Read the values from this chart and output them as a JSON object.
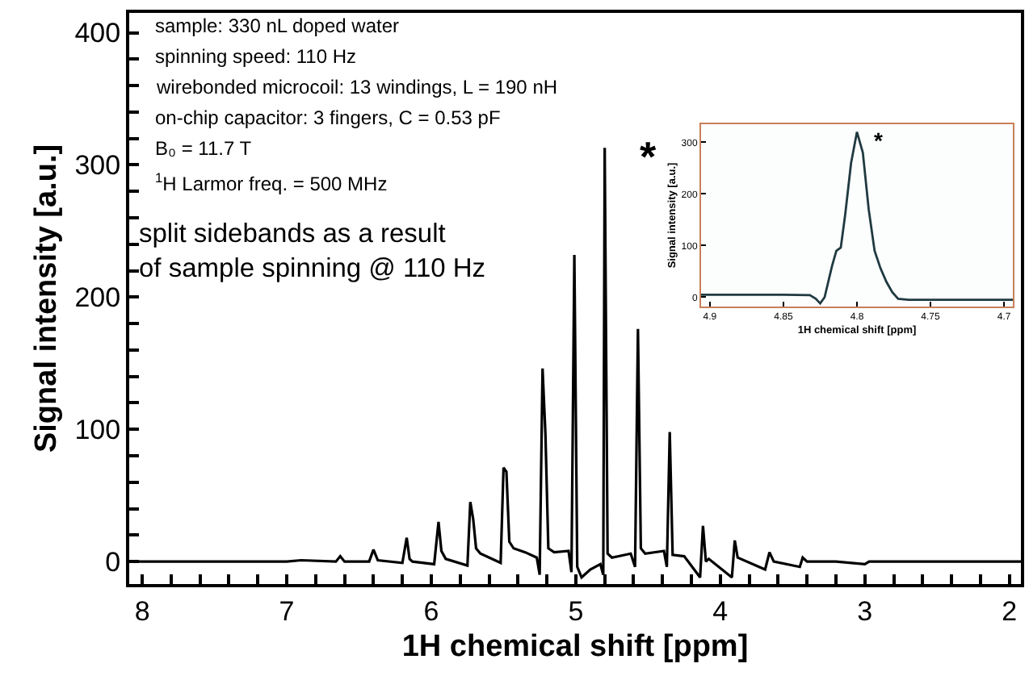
{
  "chart_data": [
    {
      "type": "line",
      "xlabel": "1H chemical shift [ppm]",
      "ylabel": "Signal intensity [a.u.]",
      "xlim": [
        8.09,
        1.92
      ],
      "ylim": [
        -17,
        415
      ],
      "xticks": [
        8,
        {
          "value": 7.8,
          "label": null
        },
        {
          "value": 7.6,
          "label": null
        },
        {
          "value": 7.4,
          "label": null
        },
        {
          "value": 7.2,
          "label": null
        },
        7,
        {
          "value": 6.8,
          "label": null
        },
        {
          "value": 6.6,
          "label": null
        },
        {
          "value": 6.4,
          "label": null
        },
        {
          "value": 6.2,
          "label": null
        },
        6,
        {
          "value": 5.8,
          "label": null
        },
        {
          "value": 5.6,
          "label": null
        },
        {
          "value": 5.4,
          "label": null
        },
        {
          "value": 5.2,
          "label": null
        },
        5,
        {
          "value": 4.8,
          "label": null
        },
        {
          "value": 4.6,
          "label": null
        },
        {
          "value": 4.4,
          "label": null
        },
        {
          "value": 4.2,
          "label": null
        },
        4,
        {
          "value": 3.8,
          "label": null
        },
        {
          "value": 3.6,
          "label": null
        },
        {
          "value": 3.4,
          "label": null
        },
        {
          "value": 3.2,
          "label": null
        },
        3,
        {
          "value": 2.8,
          "label": null
        },
        {
          "value": 2.6,
          "label": null
        },
        {
          "value": 2.4,
          "label": null
        },
        {
          "value": 2.2,
          "label": null
        },
        2
      ],
      "yticks": [
        0,
        {
          "value": 20,
          "label": null
        },
        {
          "value": 40,
          "label": null
        },
        {
          "value": 60,
          "label": null
        },
        {
          "value": 80,
          "label": null
        },
        100,
        {
          "value": 120,
          "label": null
        },
        {
          "value": 140,
          "label": null
        },
        {
          "value": 160,
          "label": null
        },
        {
          "value": 180,
          "label": null
        },
        200,
        {
          "value": 220,
          "label": null
        },
        {
          "value": 240,
          "label": null
        },
        {
          "value": 260,
          "label": null
        },
        {
          "value": 280,
          "label": null
        },
        300,
        {
          "value": 320,
          "label": null
        },
        {
          "value": 340,
          "label": null
        },
        {
          "value": 360,
          "label": null
        },
        {
          "value": 380,
          "label": null
        },
        400
      ],
      "grid": false,
      "marker": "none",
      "line_style": "solid",
      "series": [
        {
          "color": "#000000",
          "x": [
            8.09,
            7.5,
            7.0,
            6.9,
            6.66,
            6.63,
            6.6,
            6.43,
            6.4,
            6.37,
            6.2,
            6.17,
            6.15,
            6.13,
            5.98,
            5.95,
            5.93,
            5.9,
            5.75,
            5.73,
            5.71,
            5.69,
            5.66,
            5.52,
            5.5,
            5.48,
            5.46,
            5.43,
            5.35,
            5.27,
            5.25,
            5.23,
            5.21,
            5.19,
            5.15,
            5.05,
            5.03,
            5.01,
            4.99,
            4.96,
            4.9,
            4.83,
            4.81,
            4.8,
            4.78,
            4.75,
            4.62,
            4.59,
            4.57,
            4.55,
            4.52,
            4.39,
            4.37,
            4.35,
            4.33,
            4.25,
            4.14,
            4.12,
            4.1,
            4.08,
            3.92,
            3.9,
            3.88,
            3.69,
            3.66,
            3.63,
            3.45,
            3.43,
            3.4,
            3.2,
            3.0,
            2.97,
            2.5,
            1.92
          ],
          "values": [
            0,
            0,
            0,
            1,
            0,
            4,
            0,
            0,
            9,
            1,
            -1,
            18,
            2,
            0,
            -2,
            30,
            8,
            2,
            -3,
            45,
            32,
            10,
            6,
            -1,
            71,
            68,
            15,
            10,
            7,
            3,
            -10,
            146,
            96,
            10,
            7,
            8,
            -8,
            232,
            -4,
            -12,
            -6,
            -2,
            -10,
            313,
            6,
            3,
            6,
            -4,
            176,
            10,
            6,
            8,
            -4,
            98,
            5,
            4,
            -12,
            27,
            0,
            2,
            -12,
            16,
            3,
            -6,
            7,
            0,
            -4,
            3,
            0,
            0,
            -2,
            0,
            0,
            0
          ]
        }
      ],
      "annotations": [
        "sample: 330 nL doped water",
        "spinning speed: 110 Hz",
        "wirebonded microcoil: 13 windings, L = 190 nH",
        "on-chip capacitor: 3 fingers, C = 0.53 pF",
        "B₀ = 11.7 T",
        "$^{1}$H Larmor freq. = 500 MHz",
        "split sidebands as a result of sample spinning @ 110 Hz",
        {
          "text": "*",
          "x": 4.8,
          "y": 313
        }
      ]
    },
    {
      "type": "line",
      "xlabel": "1H chemical shift [ppm]",
      "ylabel": "Signal intensity [a.u.]",
      "xlim": [
        4.906,
        4.694
      ],
      "ylim": [
        -18,
        335
      ],
      "xticks": [
        4.9,
        4.85,
        4.8,
        4.75,
        4.7
      ],
      "yticks": [
        0,
        100,
        200,
        300
      ],
      "grid": false,
      "marker": "none",
      "line_style": "solid",
      "series": [
        {
          "color": "#1f3a40",
          "x": [
            4.906,
            4.85,
            4.832,
            4.828,
            4.825,
            4.822,
            4.817,
            4.814,
            4.811,
            4.808,
            4.804,
            4.8,
            4.796,
            4.792,
            4.788,
            4.784,
            4.78,
            4.776,
            4.772,
            4.765,
            4.74,
            4.694
          ],
          "values": [
            5,
            5,
            4,
            -3,
            -12,
            0,
            60,
            90,
            96,
            160,
            260,
            320,
            280,
            170,
            90,
            56,
            30,
            10,
            -3,
            -5,
            -5,
            -5
          ]
        }
      ],
      "annotations": [
        {
          "text": "*",
          "x": 4.8,
          "y": 320
        }
      ]
    }
  ]
}
